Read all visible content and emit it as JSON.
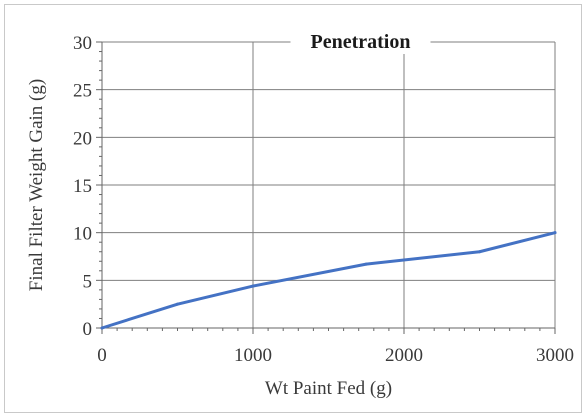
{
  "chart_data": {
    "type": "line",
    "title": "Penetration",
    "xlabel": "Wt Paint Fed (g)",
    "ylabel": "Final Filter Weight Gain (g)",
    "xlim": [
      0,
      3000
    ],
    "ylim": [
      0,
      30
    ],
    "xticks": [
      0,
      1000,
      2000,
      3000
    ],
    "yticks": [
      0,
      5,
      10,
      15,
      20,
      25,
      30
    ],
    "grid": true,
    "series": [
      {
        "x": [
          0,
          500,
          1000,
          1750,
          2500,
          3000
        ],
        "y": [
          0,
          2.5,
          4.4,
          6.7,
          8.0,
          10.0
        ]
      }
    ]
  },
  "colors": {
    "series_line": "#4472c4",
    "grid": "#7f7f7f",
    "axis": "#666666",
    "text": "#3a3a3a"
  }
}
